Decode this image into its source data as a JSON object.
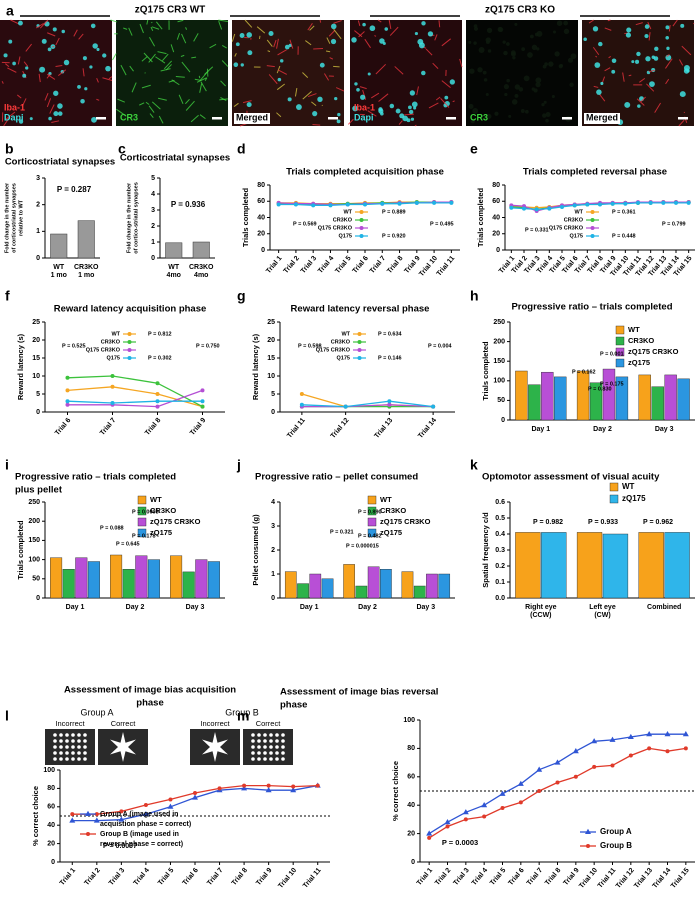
{
  "figure": {
    "panel": "a",
    "groups": [
      {
        "title": "zQ175 CR3 WT",
        "images": [
          [
            "Iba-1",
            "Dapi"
          ],
          [
            "CR3"
          ],
          [
            "Merged"
          ]
        ]
      },
      {
        "title": "zQ175 CR3 KO",
        "images": [
          [
            "Iba-1",
            "Dapi"
          ],
          [
            "CR3"
          ],
          [
            "Merged"
          ]
        ]
      }
    ]
  },
  "chart_data": [
    {
      "panel": "b",
      "type": "bar",
      "title": "Corticostriatal synapses",
      "ylabel": [
        "Fold change in the number",
        "of corticostriatal synapses",
        "relative to WT"
      ],
      "categories": [
        [
          "WT",
          "1 mo"
        ],
        [
          "CR3KO",
          "1 mo"
        ]
      ],
      "values": [
        0.9,
        1.4
      ],
      "color": "#999999",
      "ylim": [
        0,
        3
      ],
      "yticks": [
        0,
        1,
        2,
        3
      ],
      "annotations": [
        "P = 0.287"
      ]
    },
    {
      "panel": "c",
      "type": "bar",
      "title": "Corticostriatal synapses",
      "ylabel": [
        "Fold change in the number",
        "of cortico-striatal synapses"
      ],
      "categories": [
        [
          "WT",
          "4mo"
        ],
        [
          "CR3KO",
          "4mo"
        ]
      ],
      "values": [
        0.95,
        1.0
      ],
      "color": "#999999",
      "ylim": [
        0,
        5
      ],
      "yticks": [
        0,
        1,
        2,
        3,
        4,
        5
      ],
      "annotations": [
        "P = 0.936"
      ]
    },
    {
      "panel": "d",
      "type": "line",
      "title": "Trials completed acquisition phase",
      "ylabel": "Trials completed",
      "categories": [
        "Trial 1",
        "Trial 2",
        "Trial 3",
        "Trial 4",
        "Trial 5",
        "Trial 6",
        "Trial 7",
        "Trial 8",
        "Trial 9",
        "Trial 10",
        "Trial 11"
      ],
      "series": [
        {
          "name": "WT",
          "color": "#f5a623",
          "values": [
            58,
            58,
            57,
            57,
            57,
            58,
            58,
            59,
            59,
            59,
            59
          ]
        },
        {
          "name": "CR3KO",
          "color": "#3cc23c",
          "values": [
            57,
            57,
            56,
            56,
            57,
            57,
            58,
            58,
            59,
            59,
            59
          ]
        },
        {
          "name": "Q175 CR3KO",
          "color": "#b44fd4",
          "values": [
            58,
            57,
            57,
            56,
            56,
            57,
            57,
            58,
            58,
            59,
            59
          ]
        },
        {
          "name": "Q175",
          "color": "#1fb3e5",
          "values": [
            56,
            56,
            55,
            55,
            56,
            56,
            57,
            57,
            58,
            58,
            58
          ]
        }
      ],
      "ylim": [
        0,
        80
      ],
      "yticks": [
        0,
        20,
        40,
        60,
        80
      ],
      "annotations": [
        "P = 0.569",
        "P = 0.889",
        "P = 0.920",
        "P = 0.495"
      ]
    },
    {
      "panel": "e",
      "type": "line",
      "title": "Trials completed reversal phase",
      "ylabel": "Trials completed",
      "categories": [
        "Trial 1",
        "Trial 2",
        "Trial 3",
        "Trial 4",
        "Trial 5",
        "Trial 6",
        "Trial 7",
        "Trial 8",
        "Trial 9",
        "Trial 10",
        "Trial 11",
        "Trial 12",
        "Trial 13",
        "Trial 14",
        "Trial 15"
      ],
      "series": [
        {
          "name": "WT",
          "color": "#f5a623",
          "values": [
            54,
            53,
            52,
            53,
            55,
            56,
            57,
            57,
            58,
            58,
            58,
            59,
            59,
            59,
            59
          ]
        },
        {
          "name": "CR3KO",
          "color": "#3cc23c",
          "values": [
            53,
            52,
            50,
            52,
            54,
            55,
            56,
            57,
            57,
            58,
            58,
            58,
            59,
            59,
            59
          ]
        },
        {
          "name": "Q175 CR3KO",
          "color": "#b44fd4",
          "values": [
            55,
            54,
            48,
            52,
            55,
            56,
            57,
            58,
            58,
            58,
            59,
            59,
            59,
            59,
            59
          ]
        },
        {
          "name": "Q175",
          "color": "#1fb3e5",
          "values": [
            52,
            51,
            50,
            51,
            53,
            55,
            56,
            56,
            57,
            57,
            58,
            58,
            58,
            58,
            58
          ]
        }
      ],
      "ylim": [
        0,
        80
      ],
      "yticks": [
        0,
        20,
        40,
        60,
        80
      ],
      "annotations": [
        "P = 0.331",
        "P = 0.361",
        "P = 0.448",
        "P = 0.799"
      ]
    },
    {
      "panel": "f",
      "type": "line",
      "title": "Reward latency acquisition phase",
      "ylabel": "Reward latency (s)",
      "categories": [
        "Trial 6",
        "Trial 7",
        "Trial 8",
        "Trial 9"
      ],
      "series": [
        {
          "name": "WT",
          "color": "#f5a623",
          "values": [
            6,
            7,
            5,
            1.5
          ]
        },
        {
          "name": "CR3KO",
          "color": "#3cc23c",
          "values": [
            9.5,
            10,
            8,
            1.5
          ]
        },
        {
          "name": "Q175 CR3KO",
          "color": "#b44fd4",
          "values": [
            2,
            2,
            1.5,
            6
          ]
        },
        {
          "name": "Q175",
          "color": "#1fb3e5",
          "values": [
            3,
            2.5,
            3,
            3
          ]
        }
      ],
      "ylim": [
        0,
        25
      ],
      "yticks": [
        0,
        5,
        10,
        15,
        20,
        25
      ],
      "annotations": [
        "P = 0.525",
        "P = 0.812",
        "P = 0.302",
        "P = 0.750"
      ]
    },
    {
      "panel": "g",
      "type": "line",
      "title": "Reward latency reversal phase",
      "ylabel": "Reward latency (s)",
      "categories": [
        "Trial 11",
        "Trial 12",
        "Trial 13",
        "Trial 14"
      ],
      "series": [
        {
          "name": "WT",
          "color": "#f5a623",
          "values": [
            5,
            1.5,
            2,
            1.5
          ]
        },
        {
          "name": "CR3KO",
          "color": "#3cc23c",
          "values": [
            1.5,
            1.5,
            1.5,
            1.5
          ]
        },
        {
          "name": "Q175 CR3KO",
          "color": "#b44fd4",
          "values": [
            1.5,
            1.5,
            2,
            1.5
          ]
        },
        {
          "name": "Q175",
          "color": "#1fb3e5",
          "values": [
            2,
            1.5,
            3,
            1.5
          ]
        }
      ],
      "ylim": [
        0,
        25
      ],
      "yticks": [
        0,
        5,
        10,
        15,
        20,
        25
      ],
      "annotations": [
        "P = 0.598",
        "P = 0.634",
        "P = 0.146",
        "P = 0.004"
      ]
    },
    {
      "panel": "h",
      "type": "bar",
      "title": "Progressive ratio – trials completed",
      "ylabel": "Trials completed",
      "categories": [
        "Day 1",
        "Day 2",
        "Day 3"
      ],
      "series": [
        {
          "name": "WT",
          "color": "#f7a21b",
          "values": [
            125,
            125,
            115
          ]
        },
        {
          "name": "CR3KO",
          "color": "#2db34a",
          "values": [
            90,
            95,
            85
          ]
        },
        {
          "name": "zQ175 CR3KO",
          "color": "#b84fd6",
          "values": [
            122,
            130,
            115
          ]
        },
        {
          "name": "zQ175",
          "color": "#2b96e0",
          "values": [
            110,
            110,
            105
          ]
        }
      ],
      "ylim": [
        0,
        250
      ],
      "yticks": [
        0,
        50,
        100,
        150,
        200,
        250
      ],
      "annotations": [
        "P = 0.162",
        "P = 0.830",
        "P = 0.001",
        "P = 0.175"
      ]
    },
    {
      "panel": "i",
      "type": "bar",
      "title": [
        "Progressive ratio – trials completed",
        "plus pellet"
      ],
      "ylabel": "Trials completed",
      "categories": [
        "Day 1",
        "Day 2",
        "Day 3"
      ],
      "series": [
        {
          "name": "WT",
          "color": "#f7a21b",
          "values": [
            105,
            112,
            110
          ]
        },
        {
          "name": "CR3KO",
          "color": "#2db34a",
          "values": [
            75,
            75,
            68
          ]
        },
        {
          "name": "zQ175 CR3KO",
          "color": "#b84fd6",
          "values": [
            105,
            110,
            100
          ]
        },
        {
          "name": "zQ175",
          "color": "#2b96e0",
          "values": [
            95,
            100,
            95
          ]
        }
      ],
      "ylim": [
        0,
        250
      ],
      "yticks": [
        0,
        50,
        100,
        150,
        200,
        250
      ],
      "annotations": [
        "P = 0.088",
        "P = 0.645",
        "P = 0.0003",
        "P = 0.178"
      ]
    },
    {
      "panel": "j",
      "type": "bar",
      "title": "Progressive ratio – pellet consumed",
      "ylabel": "Pellet consumed (g)",
      "categories": [
        "Day 1",
        "Day 2",
        "Day 3"
      ],
      "series": [
        {
          "name": "WT",
          "color": "#f7a21b",
          "values": [
            1.1,
            1.4,
            1.1
          ]
        },
        {
          "name": "CR3KO",
          "color": "#2db34a",
          "values": [
            0.6,
            0.5,
            0.5
          ]
        },
        {
          "name": "zQ175 CR3KO",
          "color": "#b84fd6",
          "values": [
            1.0,
            1.3,
            1.0
          ]
        },
        {
          "name": "zQ175",
          "color": "#2b96e0",
          "values": [
            0.8,
            1.2,
            1.0
          ]
        }
      ],
      "ylim": [
        0,
        4
      ],
      "yticks": [
        0,
        1,
        2,
        3,
        4
      ],
      "annotations": [
        "P = 0.321",
        "P = 0.000015",
        "P = 0.890",
        "P = 0.482"
      ]
    },
    {
      "panel": "k",
      "type": "bar",
      "title": "Optomotor assessment of visual acuity",
      "ylabel": "Spatial frequency c/d",
      "categories": [
        [
          "Right eye",
          "(CCW)"
        ],
        [
          "Left eye",
          "(CW)"
        ],
        [
          "Combined"
        ]
      ],
      "series": [
        {
          "name": "WT",
          "color": "#f7a21b",
          "values": [
            0.41,
            0.41,
            0.41
          ]
        },
        {
          "name": "zQ175",
          "color": "#2fb5ea",
          "values": [
            0.41,
            0.4,
            0.41
          ]
        }
      ],
      "ylim": [
        0,
        0.6
      ],
      "yticks": [
        {
          "value": 0,
          "label": "0.0"
        },
        0.1,
        0.2,
        0.3,
        0.4,
        0.5,
        0.6
      ],
      "annotations": [
        "P = 0.982",
        "P = 0.933",
        "P = 0.962"
      ]
    },
    {
      "panel": "l",
      "type": "line",
      "title": [
        "Assessment of image bias acquisition",
        "phase"
      ],
      "ylabel": "% correct choice",
      "image_groups": [
        {
          "name": "Group A",
          "labels": [
            "Incorrect",
            "Correct"
          ]
        },
        {
          "name": "Group B",
          "labels": [
            "Incorrect",
            "Correct"
          ]
        }
      ],
      "categories": [
        "Trial 1",
        "Trial 2",
        "Trial 3",
        "Trial 4",
        "Trial 5",
        "Trial 6",
        "Trial 7",
        "Trial 8",
        "Trial 9",
        "Trial 10",
        "Trial 11"
      ],
      "series": [
        {
          "name": [
            "Group A (image used in",
            "acquistion phase = correct)"
          ],
          "color": "#2f55d4",
          "marker": "triangle",
          "values": [
            45,
            45,
            46,
            52,
            60,
            70,
            78,
            80,
            78,
            78,
            83
          ]
        },
        {
          "name": [
            "Group B (image used in",
            "reversal phase = correct)"
          ],
          "color": "#e03a2a",
          "marker": "circle",
          "values": [
            52,
            52,
            55,
            62,
            68,
            75,
            80,
            83,
            83,
            82,
            83
          ]
        }
      ],
      "ylim": [
        0,
        100
      ],
      "yticks": [
        0,
        20,
        40,
        60,
        80,
        100
      ],
      "hline": 50,
      "annotations": [
        "P = 0.0007"
      ]
    },
    {
      "panel": "m",
      "type": "line",
      "title": [
        "Assessment of image bias reversal",
        "phase"
      ],
      "ylabel": "% correct choice",
      "categories": [
        "Trial 1",
        "Trial 2",
        "Trial 3",
        "Trial 4",
        "Trial 5",
        "Trial 6",
        "Trial 7",
        "Trial 8",
        "Trial 9",
        "Trial 10",
        "Trial 11",
        "Trial 12",
        "Trial 13",
        "Trial 14",
        "Trial 15"
      ],
      "series": [
        {
          "name": "Group A",
          "color": "#2f55d4",
          "marker": "triangle",
          "values": [
            20,
            28,
            35,
            40,
            48,
            55,
            65,
            70,
            78,
            85,
            86,
            88,
            90,
            90,
            90
          ]
        },
        {
          "name": "Group B",
          "color": "#e03a2a",
          "marker": "circle",
          "values": [
            17,
            25,
            30,
            32,
            38,
            42,
            50,
            56,
            60,
            67,
            68,
            75,
            80,
            78,
            80
          ]
        }
      ],
      "ylim": [
        0,
        100
      ],
      "yticks": [
        0,
        20,
        40,
        60,
        80,
        100
      ],
      "hline": 50,
      "annotations": [
        "P = 0.0003"
      ]
    }
  ]
}
